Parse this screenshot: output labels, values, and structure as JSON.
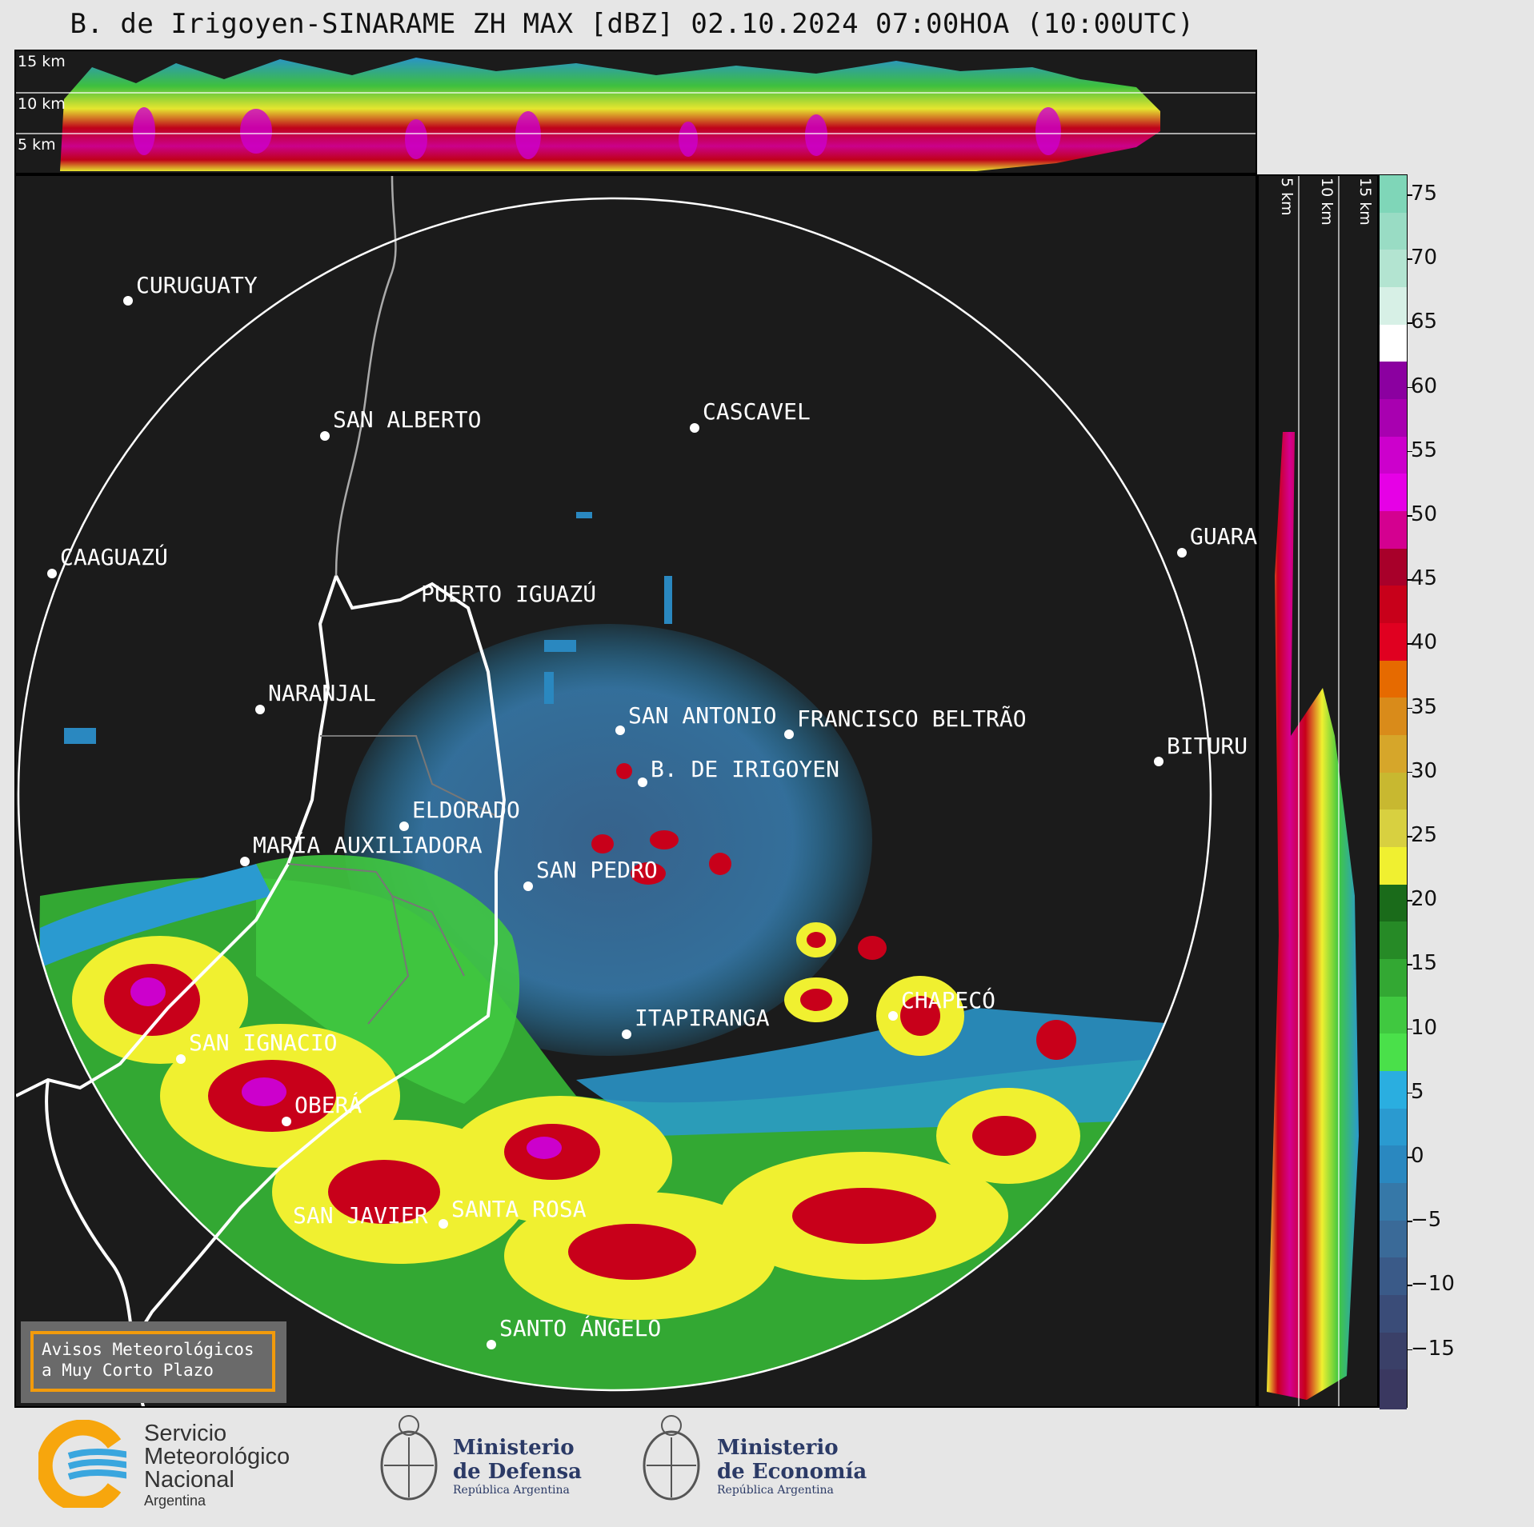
{
  "title": "B. de Irigoyen-SINARAME ZH MAX [dBZ] 02.10.2024 07:00HOA (10:00UTC)",
  "height_labels": {
    "h15": "15 km",
    "h10": "10 km",
    "h5": "5 km"
  },
  "colorbar": {
    "ticks": [
      "75",
      "70",
      "65",
      "60",
      "55",
      "50",
      "45",
      "40",
      "35",
      "30",
      "25",
      "20",
      "15",
      "10",
      "5",
      "0",
      "−5",
      "−10",
      "−15"
    ],
    "colors": [
      "#7fd6b8",
      "#99dcc4",
      "#b3e4d1",
      "#d7f0e6",
      "#ffffff",
      "#8b00a0",
      "#a800b0",
      "#cc00cc",
      "#e600e6",
      "#d40090",
      "#a8002a",
      "#c8001a",
      "#e00020",
      "#e66a00",
      "#d98b1a",
      "#d6a62a",
      "#c8b830",
      "#d8d040",
      "#f0f030",
      "#1a6b1a",
      "#268a26",
      "#33a833",
      "#40c840",
      "#4ae04a",
      "#2aaee0",
      "#2a9ad0",
      "#2a88c0",
      "#3678a8",
      "#3a6a98",
      "#3a5a88",
      "#3a4c78",
      "#3a4068",
      "#3a3860"
    ]
  },
  "cities": [
    {
      "name": "CURUGUATY"
    },
    {
      "name": "SAN ALBERTO"
    },
    {
      "name": "CASCAVEL"
    },
    {
      "name": "CAAGUAZÚ"
    },
    {
      "name": "GUARA"
    },
    {
      "name": "PUERTO IGUAZÚ"
    },
    {
      "name": "NARANJAL"
    },
    {
      "name": "SAN ANTONIO"
    },
    {
      "name": "FRANCISCO BELTRÃO"
    },
    {
      "name": "BITURU"
    },
    {
      "name": "B. DE IRIGOYEN"
    },
    {
      "name": "ELDORADO"
    },
    {
      "name": "MARÍA AUXILIADORA"
    },
    {
      "name": "SAN PEDRO"
    },
    {
      "name": "ITAPIRANGA"
    },
    {
      "name": "CHAPECÓ"
    },
    {
      "name": "SAN IGNACIO"
    },
    {
      "name": "OBERÁ"
    },
    {
      "name": "SAN JAVIER"
    },
    {
      "name": "SANTA ROSA"
    },
    {
      "name": "SANTO ÁNGELO"
    }
  ],
  "warning": {
    "line1": "Avisos Meteorológicos",
    "line2": "a Muy Corto Plazo"
  },
  "logos": {
    "smn_line1": "Servicio",
    "smn_line2": "Meteorológico",
    "smn_line3": "Nacional",
    "smn_line4": "Argentina",
    "defensa_line1": "Ministerio",
    "defensa_line2": "de Defensa",
    "defensa_line3": "República Argentina",
    "economia_line1": "Ministerio",
    "economia_line2": "de Economía",
    "economia_line3": "República Argentina"
  }
}
